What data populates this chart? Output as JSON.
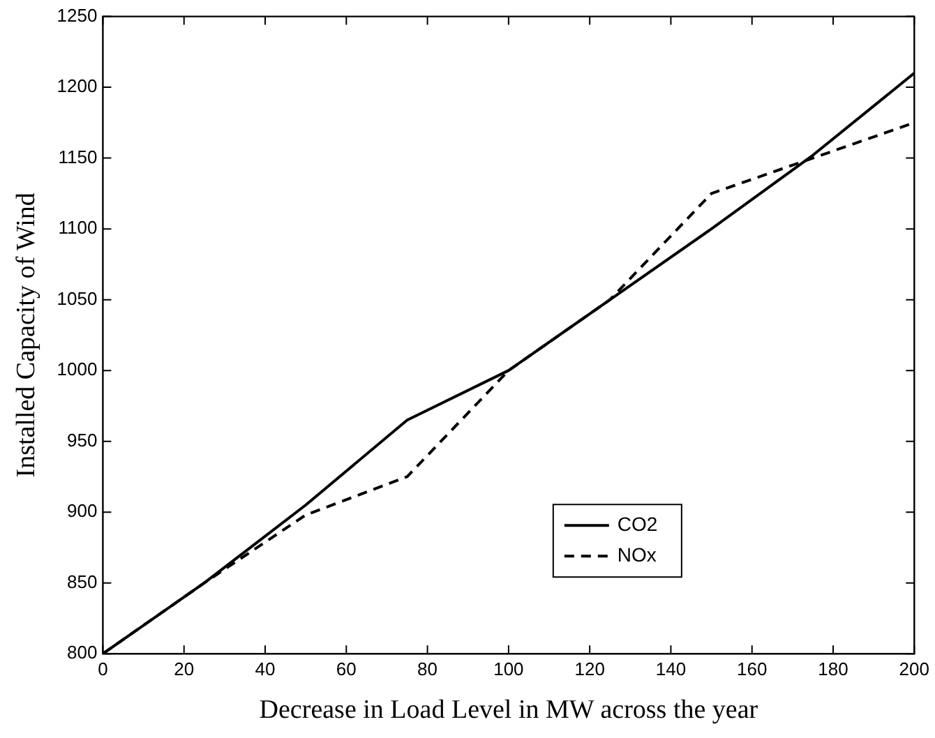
{
  "chart_data": {
    "type": "line",
    "xlabel": "Decrease in Load Level in MW across the year",
    "ylabel": "Installed Capacity of Wind",
    "x": [
      0,
      25,
      50,
      75,
      100,
      125,
      150,
      175,
      200
    ],
    "series": [
      {
        "name": "CO2",
        "color": "#000000",
        "line_style": "solid",
        "values": [
          800,
          850,
          905,
          965,
          1000,
          1050,
          1100,
          1152,
          1210
        ]
      },
      {
        "name": "NOx",
        "color": "#000000",
        "line_style": "dashed",
        "values": [
          800,
          850,
          898,
          925,
          1000,
          1050,
          1125,
          1150,
          1175
        ]
      }
    ],
    "xlim": [
      0,
      200
    ],
    "xticks": [
      0,
      20,
      40,
      60,
      80,
      100,
      120,
      140,
      160,
      180,
      200
    ],
    "ylim": [
      800,
      1250
    ],
    "yticks": [
      800,
      850,
      900,
      950,
      1000,
      1050,
      1100,
      1150,
      1200,
      1250
    ],
    "grid": false,
    "legend": "bottom right",
    "marker": "none"
  }
}
